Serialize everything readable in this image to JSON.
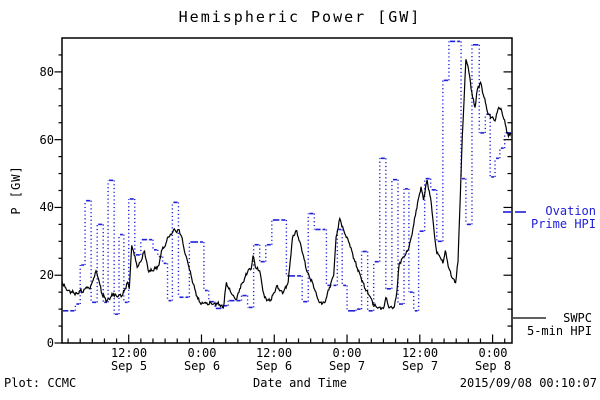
{
  "title": "Hemispheric Power [GW]",
  "footer": {
    "left": "Plot: CCMC",
    "center": "Date and Time",
    "right": "2015/09/08 00:10:07"
  },
  "legend": {
    "ovation": {
      "line1": "Ovation",
      "line2": "Prime HPI",
      "color": "#2020d8"
    },
    "swpc": {
      "line1": "SWPC",
      "line2": "5-min HPI",
      "color": "#000000"
    }
  },
  "chart_data": {
    "type": "line",
    "title": "Hemispheric Power [GW]",
    "xlabel": "Date and Time",
    "ylabel": "P [GW]",
    "ylim": [
      0,
      90
    ],
    "xlim_hours": [
      1,
      75.2
    ],
    "x_unit": "hours since 2015-09-05 00:00 UT",
    "grid": false,
    "y_ticks": [
      0,
      20,
      40,
      60,
      80
    ],
    "y_minor_step": 5,
    "x_minor_step_hours": 2,
    "x_ticks": [
      {
        "h": 12,
        "time": "12:00",
        "date": "Sep 5"
      },
      {
        "h": 24,
        "time": "0:00",
        "date": "Sep 6"
      },
      {
        "h": 36,
        "time": "12:00",
        "date": "Sep 6"
      },
      {
        "h": 48,
        "time": "0:00",
        "date": "Sep 7"
      },
      {
        "h": 60,
        "time": "12:00",
        "date": "Sep 7"
      },
      {
        "h": 72,
        "time": "0:00",
        "date": "Sep 8"
      }
    ],
    "series": [
      {
        "name": "Ovation Prime HPI",
        "style": "steps-dotted",
        "color": "#2020d8",
        "points": [
          [
            1.0,
            9.5
          ],
          [
            2.2,
            9.5
          ],
          [
            3.2,
            11.5
          ],
          [
            4.0,
            23.0
          ],
          [
            4.8,
            42.0
          ],
          [
            5.8,
            12.0
          ],
          [
            6.8,
            35.0
          ],
          [
            7.8,
            12.0
          ],
          [
            8.6,
            48.0
          ],
          [
            9.6,
            8.5
          ],
          [
            10.4,
            32.0
          ],
          [
            11.2,
            12.0
          ],
          [
            12.0,
            42.5
          ],
          [
            13.0,
            26.0
          ],
          [
            14.0,
            30.5
          ],
          [
            15.2,
            30.5
          ],
          [
            16.0,
            27.5
          ],
          [
            16.8,
            25.5
          ],
          [
            17.6,
            23.5
          ],
          [
            18.4,
            12.5
          ],
          [
            19.2,
            41.5
          ],
          [
            20.2,
            13.5
          ],
          [
            21.2,
            13.5
          ],
          [
            22.0,
            29.8
          ],
          [
            23.6,
            29.8
          ],
          [
            24.4,
            15.5
          ],
          [
            25.2,
            12.2
          ],
          [
            26.2,
            10.2
          ],
          [
            27.4,
            11.0
          ],
          [
            28.4,
            12.5
          ],
          [
            29.6,
            12.5
          ],
          [
            30.6,
            14.0
          ],
          [
            31.6,
            10.5
          ],
          [
            32.6,
            29.0
          ],
          [
            33.6,
            24.0
          ],
          [
            34.6,
            29.0
          ],
          [
            35.6,
            36.3
          ],
          [
            37.0,
            36.3
          ],
          [
            38.0,
            19.8
          ],
          [
            39.6,
            19.8
          ],
          [
            40.6,
            12.2
          ],
          [
            41.6,
            38.2
          ],
          [
            42.6,
            33.5
          ],
          [
            43.8,
            33.5
          ],
          [
            44.6,
            17.0
          ],
          [
            45.6,
            17.0
          ],
          [
            46.4,
            33.5
          ],
          [
            47.2,
            17.0
          ],
          [
            48.0,
            9.5
          ],
          [
            49.5,
            10.0
          ],
          [
            50.4,
            27.0
          ],
          [
            51.4,
            9.5
          ],
          [
            52.4,
            24.0
          ],
          [
            53.4,
            54.5
          ],
          [
            54.4,
            16.0
          ],
          [
            55.4,
            48.2
          ],
          [
            56.4,
            11.5
          ],
          [
            57.4,
            45.5
          ],
          [
            58.2,
            15.0
          ],
          [
            59.0,
            9.5
          ],
          [
            59.8,
            33.0
          ],
          [
            60.8,
            48.5
          ],
          [
            61.8,
            45.2
          ],
          [
            62.8,
            30.0
          ],
          [
            63.8,
            77.5
          ],
          [
            64.8,
            89.0
          ],
          [
            66.0,
            89.0
          ],
          [
            66.8,
            48.5
          ],
          [
            67.6,
            35.0
          ],
          [
            68.6,
            88.0
          ],
          [
            69.8,
            62.0
          ],
          [
            70.8,
            67.5
          ],
          [
            71.6,
            49.0
          ],
          [
            72.4,
            54.5
          ],
          [
            73.2,
            57.5
          ],
          [
            74.0,
            62.0
          ]
        ]
      },
      {
        "name": "SWPC 5-min HPI",
        "style": "line",
        "color": "#000000",
        "points": [
          [
            1.0,
            18.0
          ],
          [
            1.5,
            16.5
          ],
          [
            2.0,
            15.5
          ],
          [
            2.9,
            14.8
          ],
          [
            3.5,
            14.5
          ],
          [
            4.0,
            15.5
          ],
          [
            4.5,
            15.0
          ],
          [
            5.0,
            16.5
          ],
          [
            5.5,
            16.0
          ],
          [
            6.0,
            18.0
          ],
          [
            6.6,
            21.3
          ],
          [
            7.0,
            19.0
          ],
          [
            7.6,
            14.4
          ],
          [
            8.0,
            13.5
          ],
          [
            8.4,
            12.4
          ],
          [
            9.0,
            13.5
          ],
          [
            9.5,
            14.5
          ],
          [
            10.0,
            13.8
          ],
          [
            10.5,
            14.2
          ],
          [
            10.9,
            13.9
          ],
          [
            11.4,
            16.0
          ],
          [
            11.8,
            17.9
          ],
          [
            12.1,
            16.0
          ],
          [
            12.5,
            28.8
          ],
          [
            12.8,
            27.0
          ],
          [
            13.4,
            22.3
          ],
          [
            14.0,
            24.0
          ],
          [
            14.6,
            27.3
          ],
          [
            15.2,
            21.5
          ],
          [
            15.8,
            21.3
          ],
          [
            16.4,
            22.0
          ],
          [
            17.0,
            23.0
          ],
          [
            17.4,
            27.3
          ],
          [
            18.0,
            28.5
          ],
          [
            18.5,
            31.3
          ],
          [
            19.0,
            32.0
          ],
          [
            19.4,
            33.5
          ],
          [
            19.8,
            32.8
          ],
          [
            20.2,
            33.5
          ],
          [
            20.7,
            31.5
          ],
          [
            21.2,
            27.0
          ],
          [
            21.8,
            23.3
          ],
          [
            22.4,
            19.0
          ],
          [
            22.9,
            15.9
          ],
          [
            23.4,
            13.0
          ],
          [
            24.0,
            11.5
          ],
          [
            24.5,
            11.9
          ],
          [
            25.0,
            11.3
          ],
          [
            25.5,
            11.9
          ],
          [
            26.0,
            11.5
          ],
          [
            26.5,
            11.7
          ],
          [
            27.0,
            11.3
          ],
          [
            27.6,
            10.4
          ],
          [
            28.1,
            17.9
          ],
          [
            28.5,
            16.0
          ],
          [
            29.0,
            14.4
          ],
          [
            29.4,
            13.5
          ],
          [
            29.8,
            12.9
          ],
          [
            30.3,
            16.0
          ],
          [
            31.1,
            19.0
          ],
          [
            31.7,
            21.5
          ],
          [
            32.2,
            21.8
          ],
          [
            32.5,
            25.8
          ],
          [
            33.0,
            22.0
          ],
          [
            33.6,
            21.3
          ],
          [
            34.0,
            17.0
          ],
          [
            34.4,
            13.4
          ],
          [
            35.0,
            12.6
          ],
          [
            35.3,
            12.4
          ],
          [
            36.0,
            14.8
          ],
          [
            36.4,
            16.9
          ],
          [
            37.0,
            15.5
          ],
          [
            37.5,
            14.9
          ],
          [
            38.3,
            18.0
          ],
          [
            39.0,
            31.0
          ],
          [
            39.6,
            33.2
          ],
          [
            40.2,
            30.0
          ],
          [
            40.7,
            26.3
          ],
          [
            41.4,
            21.0
          ],
          [
            42.4,
            17.4
          ],
          [
            43.0,
            14.0
          ],
          [
            43.5,
            11.9
          ],
          [
            44.3,
            11.9
          ],
          [
            45.1,
            16.4
          ],
          [
            45.8,
            20.0
          ],
          [
            46.2,
            31.3
          ],
          [
            46.8,
            36.7
          ],
          [
            47.5,
            33.0
          ],
          [
            48.4,
            29.3
          ],
          [
            49.3,
            24.0
          ],
          [
            50.3,
            19.3
          ],
          [
            51.0,
            16.0
          ],
          [
            51.7,
            13.9
          ],
          [
            52.5,
            11.0
          ],
          [
            53.2,
            10.5
          ],
          [
            54.0,
            10.2
          ],
          [
            54.4,
            13.4
          ],
          [
            54.9,
            10.4
          ],
          [
            55.8,
            10.6
          ],
          [
            56.2,
            15.0
          ],
          [
            56.6,
            23.3
          ],
          [
            57.2,
            25.3
          ],
          [
            57.7,
            26.3
          ],
          [
            58.2,
            28.0
          ],
          [
            58.6,
            31.3
          ],
          [
            59.0,
            35.0
          ],
          [
            59.4,
            39.2
          ],
          [
            60.2,
            46.1
          ],
          [
            60.6,
            42.2
          ],
          [
            61.2,
            48.1
          ],
          [
            61.9,
            41.2
          ],
          [
            62.4,
            32.0
          ],
          [
            62.8,
            26.5
          ],
          [
            63.3,
            25.5
          ],
          [
            63.8,
            23.5
          ],
          [
            64.2,
            27.3
          ],
          [
            64.8,
            22.0
          ],
          [
            65.4,
            19.0
          ],
          [
            65.9,
            17.8
          ],
          [
            66.3,
            24.0
          ],
          [
            66.7,
            45.0
          ],
          [
            67.0,
            61.0
          ],
          [
            67.3,
            71.9
          ],
          [
            67.6,
            83.7
          ],
          [
            67.9,
            82.0
          ],
          [
            68.1,
            79.9
          ],
          [
            68.7,
            72.4
          ],
          [
            69.1,
            69.5
          ],
          [
            69.5,
            74.9
          ],
          [
            70.0,
            76.9
          ],
          [
            70.6,
            72.4
          ],
          [
            71.3,
            67.5
          ],
          [
            71.9,
            66.5
          ],
          [
            72.4,
            65.5
          ],
          [
            73.0,
            69.5
          ],
          [
            73.5,
            68.5
          ],
          [
            74.1,
            64.5
          ],
          [
            74.6,
            61.0
          ],
          [
            75.0,
            62.0
          ]
        ]
      }
    ]
  }
}
